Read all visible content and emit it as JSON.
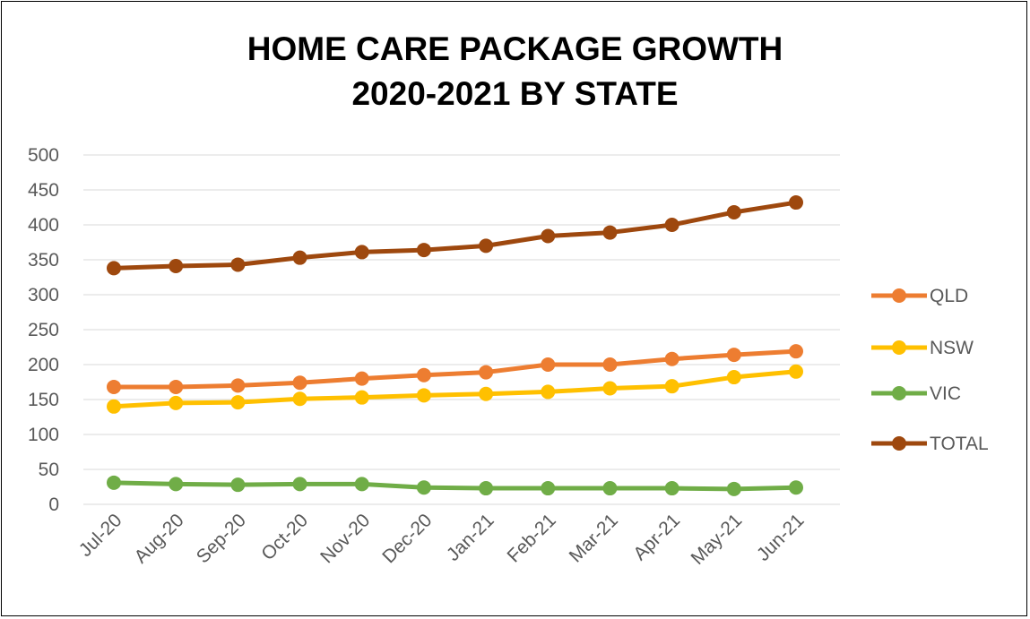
{
  "chart_data": {
    "type": "line",
    "title_lines": [
      "HOME CARE PACKAGE GROWTH",
      "2020-2021 BY STATE"
    ],
    "categories": [
      "Jul-20",
      "Aug-20",
      "Sep-20",
      "Oct-20",
      "Nov-20",
      "Dec-20",
      "Jan-21",
      "Feb-21",
      "Mar-21",
      "Apr-21",
      "May-21",
      "Jun-21"
    ],
    "ylim": [
      0,
      500
    ],
    "yticks": [
      0,
      50,
      100,
      150,
      200,
      250,
      300,
      350,
      400,
      450,
      500
    ],
    "grid": true,
    "legend_position": "right",
    "series": [
      {
        "name": "QLD",
        "color": "#ED7D31",
        "values": [
          168,
          168,
          170,
          174,
          180,
          185,
          189,
          200,
          200,
          208,
          214,
          219
        ]
      },
      {
        "name": "NSW",
        "color": "#FFC000",
        "values": [
          140,
          145,
          146,
          151,
          153,
          156,
          158,
          161,
          166,
          169,
          182,
          190
        ]
      },
      {
        "name": "VIC",
        "color": "#70AD47",
        "values": [
          31,
          29,
          28,
          29,
          29,
          24,
          23,
          23,
          23,
          23,
          22,
          24
        ]
      },
      {
        "name": "TOTAL",
        "color": "#9E480E",
        "values": [
          338,
          341,
          343,
          353,
          361,
          364,
          370,
          384,
          389,
          400,
          418,
          432
        ]
      }
    ]
  }
}
